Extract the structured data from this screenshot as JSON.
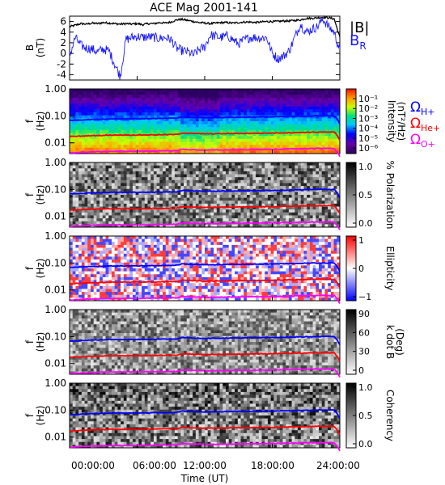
{
  "title": "ACE Mag 2001-141",
  "xlabel": "Time (UT)",
  "x_ticks": [
    "00:00:00",
    "06:00:00",
    "12:00:00",
    "18:00:00",
    "24:00:00"
  ],
  "colors": {
    "B": "#000000",
    "BR": "#1a1aff",
    "H": "#0000ff",
    "He": "#ff0000",
    "O": "#ff00ff"
  },
  "chart_data": [
    {
      "type": "line",
      "panel": "field",
      "ylabel": "B",
      "yunit": "(nT)",
      "ylim": [
        -5,
        7
      ],
      "y_ticks": [
        "6",
        "4",
        "2",
        "0",
        "-2",
        "-4"
      ],
      "x_hours": [
        0,
        0.5,
        1,
        1.5,
        2,
        2.5,
        3,
        3.5,
        4,
        4.5,
        5,
        5.5,
        6,
        6.5,
        7,
        7.5,
        8,
        8.5,
        9,
        9.5,
        10,
        10.5,
        11,
        11.5,
        12,
        12.5,
        13,
        13.5,
        14,
        14.5,
        15,
        15.5,
        16,
        16.5,
        17,
        17.5,
        18,
        18.5,
        19,
        19.5,
        20,
        20.5,
        21,
        21.5,
        22,
        22.5,
        23,
        23.5,
        24
      ],
      "series": [
        {
          "name": "|B|",
          "values": [
            5.0,
            5.3,
            5.6,
            5.5,
            5.7,
            5.6,
            5.8,
            5.7,
            5.6,
            5.5,
            5.6,
            5.5,
            5.6,
            5.4,
            5.6,
            5.6,
            5.8,
            5.7,
            5.9,
            6.3,
            6.4,
            6.2,
            6.0,
            5.8,
            5.7,
            5.6,
            5.7,
            5.8,
            5.8,
            5.7,
            5.8,
            5.9,
            5.9,
            5.8,
            5.9,
            6.0,
            6.0,
            6.0,
            6.1,
            6.1,
            6.2,
            6.3,
            6.6,
            6.6,
            6.7,
            6.8,
            6.7,
            6.5,
            3.0
          ]
        },
        {
          "name": "B",
          "subscript": "R",
          "values": [
            -0.5,
            3.0,
            1.5,
            1.0,
            0.8,
            0.3,
            0.8,
            0.5,
            -2.0,
            -4.3,
            2.6,
            3.0,
            3.2,
            3.0,
            3.1,
            3.0,
            2.8,
            3.0,
            2.6,
            1.0,
            0.5,
            0.3,
            -0.3,
            0.7,
            1.2,
            3.5,
            3.2,
            3.0,
            3.3,
            2.6,
            1.8,
            2.5,
            3.0,
            3.0,
            2.9,
            3.0,
            0.0,
            -1.0,
            -0.5,
            0.5,
            3.0,
            5.5,
            4.0,
            4.5,
            5.0,
            6.5,
            5.0,
            4.0,
            0.5
          ]
        }
      ]
    },
    {
      "type": "heatmap",
      "panel": "intensity",
      "ylabel": "f",
      "yunit": "(Hz)",
      "y_ticks": [
        "1.00",
        "0.10",
        "0.01"
      ],
      "colorbar_label": "Intensity",
      "colorbar_unit": "(nT²/Hz)",
      "colorbar_ticks": [
        "10⁻¹",
        "10⁻²",
        "10⁻³",
        "10⁻⁴",
        "10⁻⁵",
        "10⁻⁶"
      ],
      "colorbar_exponents": [
        -1,
        -2,
        -3,
        -4,
        -5,
        -6
      ]
    },
    {
      "type": "heatmap",
      "panel": "polarization",
      "ylabel": "f",
      "yunit": "(Hz)",
      "y_ticks": [
        "1.00",
        "0.10",
        "0.01"
      ],
      "colorbar_label": "% Polarization",
      "colorbar_ticks": [
        "1.0",
        "0.5",
        "0.0"
      ]
    },
    {
      "type": "heatmap",
      "panel": "ellipticity",
      "ylabel": "f",
      "yunit": "(Hz)",
      "y_ticks": [
        "1.00",
        "0.10",
        "0.01"
      ],
      "colorbar_label": "Ellipticity",
      "colorbar_ticks": [
        "1",
        "0",
        "−1"
      ]
    },
    {
      "type": "heatmap",
      "panel": "kdotb",
      "ylabel": "f",
      "yunit": "(Hz)",
      "y_ticks": [
        "1.00",
        "0.10",
        "0.01"
      ],
      "colorbar_label": "k dot B",
      "colorbar_unit": "(Deg)",
      "colorbar_ticks": [
        "90",
        "60",
        "30",
        "0"
      ]
    },
    {
      "type": "heatmap",
      "panel": "coherency",
      "ylabel": "f",
      "yunit": "(Hz)",
      "y_ticks": [
        "1.00",
        "0.10",
        "0.01"
      ],
      "colorbar_label": "Coherency",
      "colorbar_ticks": [
        "1.0",
        "0.5",
        "0.0"
      ]
    }
  ],
  "gyro_lines": {
    "ion_labels": [
      {
        "name": "Ω",
        "sub": "H+"
      },
      {
        "name": "Ω",
        "sub": "He+"
      },
      {
        "name": "Ω",
        "sub": "O+"
      }
    ],
    "x_hours": [
      0,
      2,
      4,
      6,
      8,
      9.5,
      10,
      12,
      14,
      16,
      18,
      20,
      22,
      23.5,
      24
    ],
    "H_plus_hz": [
      0.068,
      0.074,
      0.078,
      0.078,
      0.08,
      0.082,
      0.092,
      0.086,
      0.088,
      0.09,
      0.092,
      0.096,
      0.1,
      0.1,
      0.05
    ]
  }
}
